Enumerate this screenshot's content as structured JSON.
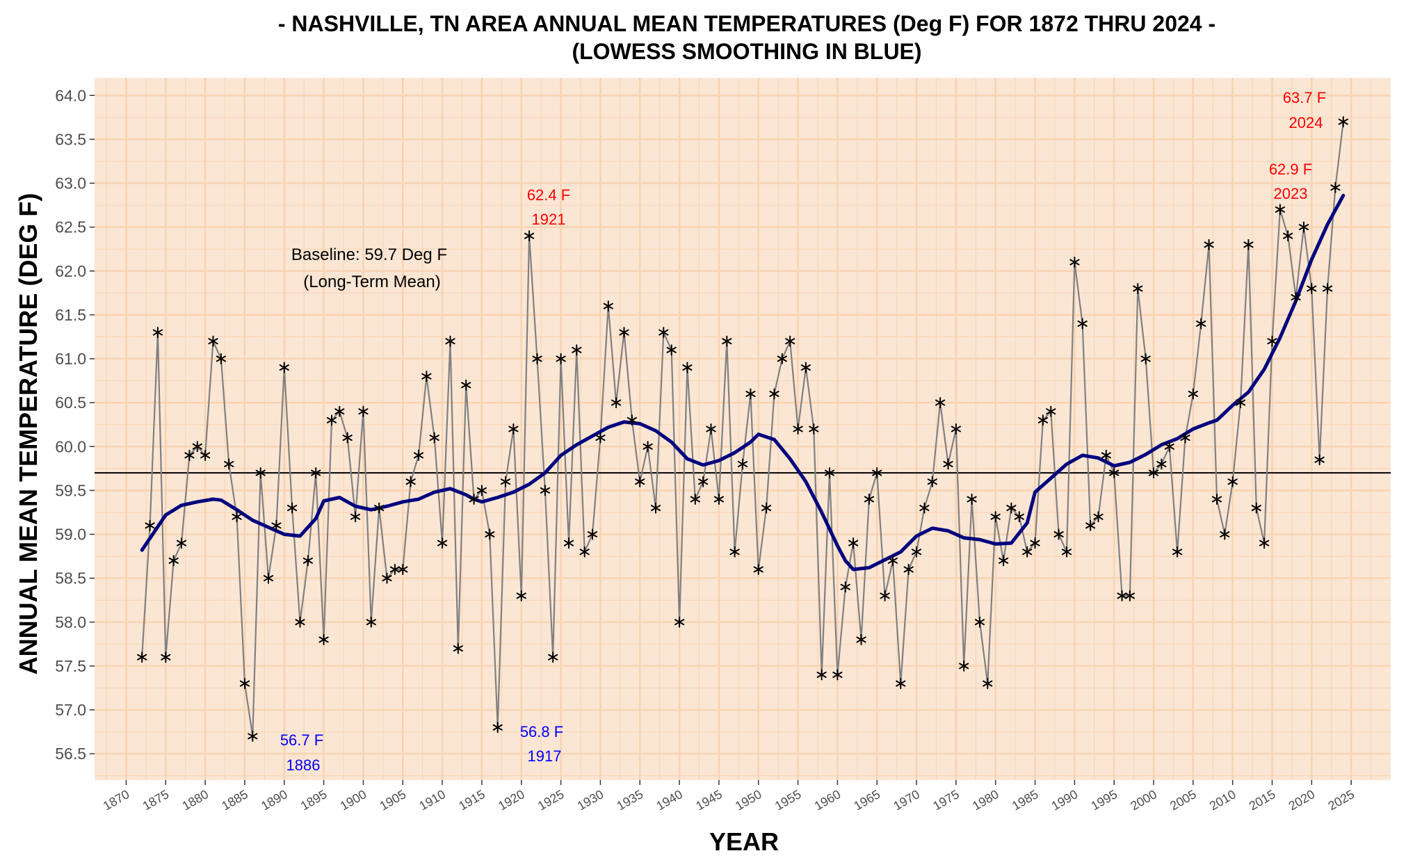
{
  "chart_data": {
    "type": "line",
    "title": "- NASHVILLE, TN AREA ANNUAL MEAN TEMPERATURES (Deg F) FOR 1872 THRU 2024 -",
    "subtitle": "(LOWESS SMOOTHING IN BLUE)",
    "xlabel": "YEAR",
    "ylabel": "ANNUAL MEAN TEMPERATURE (DEG F)",
    "xlim": [
      1866,
      2030
    ],
    "ylim": [
      56.2,
      64.2
    ],
    "x_ticks": [
      "1870",
      "1875",
      "1880",
      "1885",
      "1890",
      "1895",
      "1900",
      "1905",
      "1910",
      "1915",
      "1920",
      "1925",
      "1930",
      "1935",
      "1940",
      "1945",
      "1950",
      "1955",
      "1960",
      "1965",
      "1970",
      "1975",
      "1980",
      "1985",
      "1990",
      "1995",
      "2000",
      "2005",
      "2010",
      "2015",
      "2020",
      "2025"
    ],
    "y_ticks": [
      "56.5",
      "57.0",
      "57.5",
      "58.0",
      "58.5",
      "59.0",
      "59.5",
      "60.0",
      "60.5",
      "61.0",
      "61.5",
      "62.0",
      "62.5",
      "63.0",
      "63.5",
      "64.0"
    ],
    "grid": true,
    "colors": {
      "panel": "#fbe6d4",
      "grid": "#f8d3b0",
      "series": "#808080",
      "smooth": "#00007f",
      "marker": "#000000",
      "high": "#ff0000",
      "low": "#0000ff"
    },
    "baseline": {
      "value": 59.7,
      "label_line1": "Baseline: 59.7 Deg F",
      "label_line2": "(Long-Term Mean)"
    },
    "series": [
      {
        "x": [
          1872,
          1873,
          1874,
          1875,
          1876,
          1877,
          1878,
          1879,
          1880,
          1881,
          1882,
          1883,
          1884,
          1885,
          1886,
          1887,
          1888,
          1889,
          1890,
          1891,
          1892,
          1893,
          1894,
          1895,
          1896,
          1897,
          1898,
          1899,
          1900,
          1901,
          1902,
          1903,
          1904,
          1905,
          1906,
          1907,
          1908,
          1909,
          1910,
          1911,
          1912,
          1913,
          1914,
          1915,
          1916,
          1917,
          1918,
          1919,
          1920,
          1921,
          1922,
          1923,
          1924,
          1925,
          1926,
          1927,
          1928,
          1929,
          1930,
          1931,
          1932,
          1933,
          1934,
          1935,
          1936,
          1937,
          1938,
          1939,
          1940,
          1941,
          1942,
          1943,
          1944,
          1945,
          1946,
          1947,
          1948,
          1949,
          1950,
          1951,
          1952,
          1953,
          1954,
          1955,
          1956,
          1957,
          1958,
          1959,
          1960,
          1961,
          1962,
          1963,
          1964,
          1965,
          1966,
          1967,
          1968,
          1969,
          1970,
          1971,
          1972,
          1973,
          1974,
          1975,
          1976,
          1977,
          1978,
          1979,
          1980,
          1981,
          1982,
          1983,
          1984,
          1985,
          1986,
          1987,
          1988,
          1989,
          1990,
          1991,
          1992,
          1993,
          1994,
          1995,
          1996,
          1997,
          1998,
          1999,
          2000,
          2001,
          2002,
          2003,
          2004,
          2005,
          2006,
          2007,
          2008,
          2009,
          2010,
          2011,
          2012,
          2013,
          2014,
          2015,
          2016,
          2017,
          2018,
          2019,
          2020,
          2021,
          2022,
          2023,
          2024
        ],
        "values": [
          57.6,
          59.1,
          61.3,
          57.6,
          58.7,
          58.9,
          59.9,
          60.0,
          59.9,
          61.2,
          61.0,
          59.8,
          59.2,
          57.3,
          56.7,
          59.7,
          58.5,
          59.1,
          60.9,
          59.3,
          58.0,
          58.7,
          59.7,
          57.8,
          60.3,
          60.4,
          60.1,
          59.2,
          60.4,
          58.0,
          59.3,
          58.5,
          58.6,
          58.6,
          59.6,
          59.9,
          60.8,
          60.1,
          58.9,
          61.2,
          57.7,
          60.7,
          59.4,
          59.5,
          59.0,
          56.8,
          59.6,
          60.2,
          58.3,
          62.4,
          61.0,
          59.5,
          57.6,
          61.0,
          58.9,
          61.1,
          58.8,
          59.0,
          60.1,
          61.6,
          60.5,
          61.3,
          60.3,
          59.6,
          60.0,
          59.3,
          61.3,
          61.1,
          58.0,
          60.9,
          59.4,
          59.6,
          60.2,
          59.4,
          61.2,
          58.8,
          59.8,
          60.6,
          58.6,
          59.3,
          60.6,
          61.0,
          61.2,
          60.2,
          60.9,
          60.2,
          57.4,
          59.7,
          57.4,
          58.4,
          58.9,
          57.8,
          59.4,
          59.7,
          58.3,
          58.7,
          57.3,
          58.6,
          58.8,
          59.3,
          59.6,
          60.5,
          59.8,
          60.2,
          57.5,
          59.4,
          58.0,
          57.3,
          59.2,
          58.7,
          59.3,
          59.2,
          58.8,
          58.9,
          60.3,
          60.4,
          59.0,
          58.8,
          62.1,
          61.4,
          59.1,
          59.2,
          59.9,
          59.7,
          58.3,
          58.3,
          61.8,
          61.0,
          59.7,
          59.8,
          60.0,
          58.8,
          60.1,
          60.6,
          61.4,
          62.3,
          59.4,
          59.0,
          59.6,
          60.5,
          62.3,
          59.3,
          58.9,
          61.2,
          62.7,
          62.4,
          61.7,
          62.5,
          61.8,
          59.85,
          61.8,
          62.95,
          63.7
        ]
      },
      {
        "name": "LOWESS smoothing",
        "x": [
          1872,
          1875,
          1877,
          1879,
          1881,
          1882,
          1884,
          1886,
          1888,
          1890,
          1892,
          1894,
          1895,
          1897,
          1899,
          1901,
          1903,
          1905,
          1907,
          1909,
          1911,
          1913,
          1914,
          1915,
          1917,
          1919,
          1921,
          1923,
          1925,
          1927,
          1929,
          1931,
          1933,
          1935,
          1937,
          1939,
          1941,
          1943,
          1945,
          1947,
          1949,
          1950,
          1952,
          1954,
          1956,
          1958,
          1960,
          1961,
          1962,
          1964,
          1966,
          1968,
          1970,
          1972,
          1974,
          1976,
          1978,
          1980,
          1982,
          1984,
          1985,
          1987,
          1989,
          1991,
          1993,
          1995,
          1997,
          1999,
          2001,
          2003,
          2005,
          2007,
          2008,
          2010,
          2012,
          2014,
          2016,
          2018,
          2020,
          2022,
          2024
        ],
        "values": [
          58.82,
          59.22,
          59.33,
          59.37,
          59.4,
          59.39,
          59.28,
          59.16,
          59.08,
          59.0,
          58.98,
          59.18,
          59.38,
          59.42,
          59.32,
          59.28,
          59.32,
          59.37,
          59.4,
          59.48,
          59.52,
          59.45,
          59.4,
          59.37,
          59.42,
          59.48,
          59.57,
          59.7,
          59.9,
          60.02,
          60.12,
          60.22,
          60.28,
          60.26,
          60.18,
          60.05,
          59.86,
          59.79,
          59.84,
          59.93,
          60.05,
          60.14,
          60.08,
          59.86,
          59.6,
          59.25,
          58.87,
          58.7,
          58.6,
          58.62,
          58.71,
          58.8,
          58.98,
          59.07,
          59.04,
          58.96,
          58.94,
          58.89,
          58.9,
          59.13,
          59.48,
          59.64,
          59.8,
          59.9,
          59.87,
          59.78,
          59.82,
          59.91,
          60.02,
          60.09,
          60.2,
          60.27,
          60.3,
          60.47,
          60.62,
          60.88,
          61.24,
          61.66,
          62.13,
          62.53,
          62.86
        ]
      }
    ],
    "annotations": {
      "hi_2024_value": "63.7 F",
      "hi_2024_year": "2024",
      "hi_2023_value": "62.9 F",
      "hi_2023_year": "2023",
      "hi_1921_value": "62.4 F",
      "hi_1921_year": "1921",
      "lo_1886_value": "56.7 F",
      "lo_1886_year": "1886",
      "lo_1917_value": "56.8 F",
      "lo_1917_year": "1917"
    }
  }
}
